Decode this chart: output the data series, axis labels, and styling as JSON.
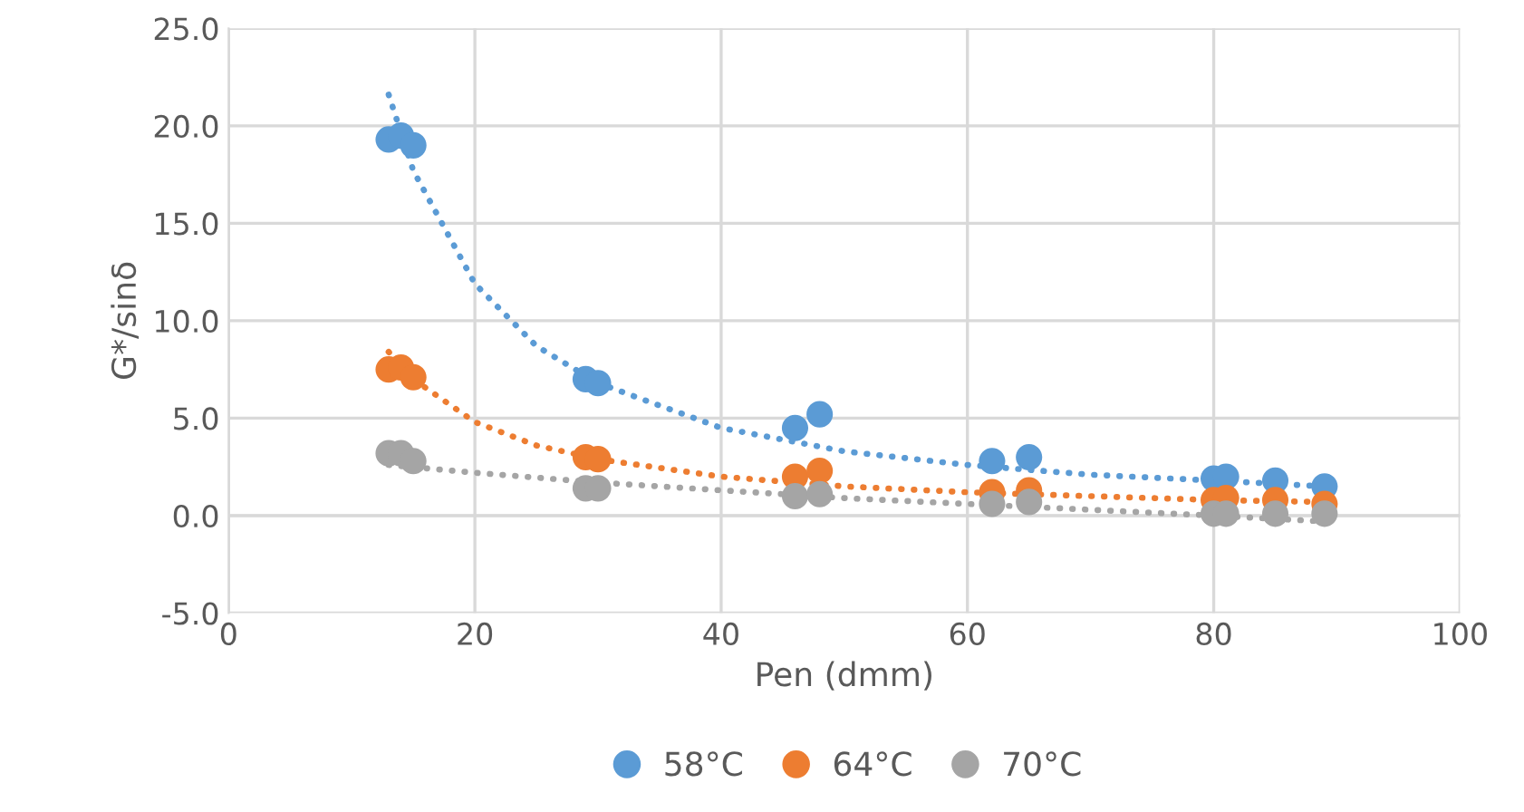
{
  "chart_data": {
    "type": "scatter",
    "xlabel": "Pen (dmm)",
    "ylabel": "G*/sinδ",
    "xlim": [
      0,
      100
    ],
    "ylim": [
      -5,
      25
    ],
    "xticks": [
      0,
      20,
      40,
      60,
      80,
      100
    ],
    "yticks": [
      {
        "value": -5,
        "label": "-5.0"
      },
      {
        "value": 0,
        "label": "0.0"
      },
      {
        "value": 5,
        "label": "5.0"
      },
      {
        "value": 10,
        "label": "10.0"
      },
      {
        "value": 15,
        "label": "15.0"
      },
      {
        "value": 20,
        "label": "20.0"
      },
      {
        "value": 25,
        "label": "25.0"
      }
    ],
    "grid": true,
    "legend": "bottom",
    "marker": "circle",
    "series": [
      {
        "name": "58°C",
        "color": "#5b9bd5",
        "x": [
          13,
          14,
          15,
          29,
          30,
          46,
          48,
          62,
          65,
          80,
          81,
          85,
          89
        ],
        "values": [
          19.3,
          19.5,
          19.0,
          7.0,
          6.8,
          4.5,
          5.2,
          2.8,
          3.0,
          1.9,
          2.0,
          1.8,
          1.5
        ]
      },
      {
        "name": "64°C",
        "color": "#ed7d31",
        "x": [
          13,
          14,
          15,
          29,
          30,
          46,
          48,
          62,
          65,
          80,
          81,
          85,
          89
        ],
        "values": [
          7.5,
          7.6,
          7.1,
          3.0,
          2.9,
          2.0,
          2.3,
          1.2,
          1.3,
          0.8,
          0.9,
          0.8,
          0.6
        ]
      },
      {
        "name": "70°C",
        "color": "#a5a5a5",
        "x": [
          13,
          14,
          15,
          29,
          30,
          46,
          48,
          62,
          65,
          80,
          81,
          85,
          89
        ],
        "values": [
          3.2,
          3.2,
          2.8,
          1.4,
          1.4,
          1.0,
          1.1,
          0.6,
          0.7,
          0.1,
          0.1,
          0.1,
          0.1
        ]
      },
      {
        "type": "line",
        "line_style": "dotted",
        "marker": "none",
        "color": "#5b9bd5",
        "x": [
          13,
          15,
          20,
          25,
          30,
          40,
          50,
          60,
          70,
          80,
          89
        ],
        "values": [
          21.6,
          17.7,
          11.9,
          8.7,
          6.8,
          4.5,
          3.3,
          2.6,
          2.1,
          1.8,
          1.5
        ]
      },
      {
        "type": "line",
        "line_style": "dotted",
        "marker": "none",
        "color": "#ed7d31",
        "x": [
          13,
          15,
          20,
          25,
          30,
          40,
          50,
          60,
          70,
          80,
          89
        ],
        "values": [
          8.4,
          7.0,
          4.8,
          3.6,
          2.9,
          2.0,
          1.5,
          1.2,
          1.0,
          0.8,
          0.7
        ]
      },
      {
        "type": "line",
        "line_style": "dotted",
        "marker": "none",
        "color": "#a5a5a5",
        "x": [
          13,
          20,
          30,
          40,
          50,
          60,
          70,
          80,
          89
        ],
        "values": [
          2.6,
          2.2,
          1.7,
          1.3,
          0.9,
          0.6,
          0.3,
          0.0,
          -0.3
        ]
      }
    ]
  }
}
